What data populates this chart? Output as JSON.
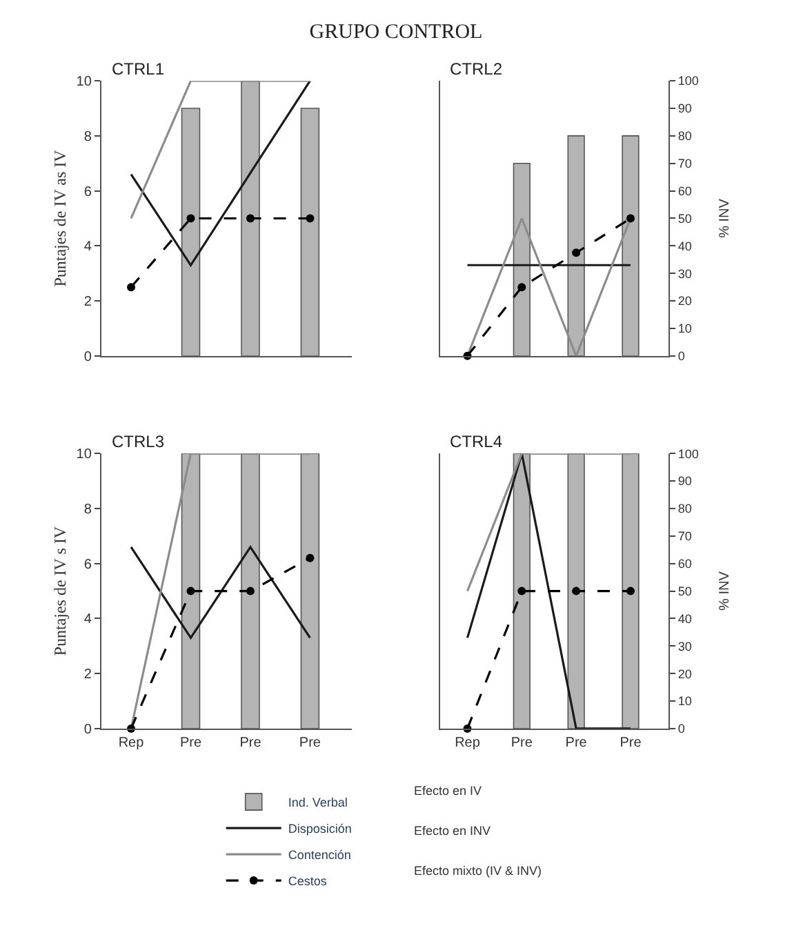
{
  "chart_data": [
    {
      "type": "bar",
      "title": "CTRL1",
      "ylabel": "Puntajes de IV as IV",
      "categories": [
        null,
        null,
        null,
        null
      ],
      "ylim": [
        0,
        10
      ],
      "yticks": [
        0,
        2,
        4,
        6,
        8,
        10
      ],
      "legend": "bottom",
      "series": [
        {
          "name": "Ind. Verbal",
          "type": "bar",
          "color": "#b4b4b4",
          "values": [
            null,
            9,
            10,
            9
          ]
        },
        {
          "name": "Disposición",
          "type": "line",
          "color": "#1a1a1a",
          "line_style": "solid",
          "values": [
            6.6,
            3.3,
            6.65,
            10
          ]
        },
        {
          "name": "Contención",
          "type": "line",
          "color": "#8c8c8c",
          "line_style": "solid",
          "values": [
            5,
            10,
            10,
            10
          ]
        },
        {
          "name": "Cestos",
          "type": "line",
          "color": "#000000",
          "line_style": "dashed",
          "marker": "circle",
          "values": [
            2.5,
            5,
            5,
            5
          ]
        }
      ]
    },
    {
      "type": "bar",
      "title": "CTRL2",
      "y2label": "% INV",
      "categories": [
        null,
        null,
        null,
        null
      ],
      "y2lim": [
        0,
        100
      ],
      "y2ticks": [
        0,
        10,
        20,
        30,
        40,
        50,
        60,
        70,
        80,
        90,
        100
      ],
      "legend": "bottom",
      "series": [
        {
          "name": "Ind. Verbal",
          "type": "bar",
          "axis": "y2",
          "color": "#b4b4b4",
          "values": [
            null,
            70,
            80,
            80
          ]
        },
        {
          "name": "Disposición",
          "type": "line",
          "axis": "y2",
          "color": "#1a1a1a",
          "line_style": "solid",
          "values": [
            33,
            33,
            33,
            33
          ]
        },
        {
          "name": "Contención",
          "type": "line",
          "axis": "y2",
          "color": "#8c8c8c",
          "line_style": "solid",
          "values": [
            0,
            50,
            0,
            50
          ]
        },
        {
          "name": "Cestos",
          "type": "line",
          "axis": "y2",
          "color": "#000000",
          "line_style": "dashed",
          "marker": "circle",
          "values": [
            0,
            25,
            37.5,
            50
          ]
        }
      ]
    },
    {
      "type": "bar",
      "title": "CTRL3",
      "ylabel": "Puntajes de IV s IV",
      "categories": [
        "Rep",
        "Pre",
        "Pre",
        "Pre"
      ],
      "ylim": [
        0,
        10
      ],
      "yticks": [
        0,
        2,
        4,
        6,
        8,
        10
      ],
      "legend": "bottom",
      "series": [
        {
          "name": "Ind. Verbal",
          "type": "bar",
          "color": "#b4b4b4",
          "values": [
            null,
            10,
            10,
            10
          ]
        },
        {
          "name": "Disposición",
          "type": "line",
          "color": "#1a1a1a",
          "line_style": "solid",
          "values": [
            6.6,
            3.3,
            6.6,
            3.3
          ]
        },
        {
          "name": "Contención",
          "type": "line",
          "color": "#8c8c8c",
          "line_style": "solid",
          "values": [
            0,
            10,
            10,
            10
          ]
        },
        {
          "name": "Cestos",
          "type": "line",
          "color": "#000000",
          "line_style": "dashed",
          "marker": "circle",
          "values": [
            0,
            5,
            5,
            6.2
          ]
        }
      ]
    },
    {
      "type": "bar",
      "title": "CTRL4",
      "y2label": "% INV",
      "categories": [
        "Rep",
        "Pre",
        "Pre",
        "Pre"
      ],
      "y2lim": [
        0,
        100
      ],
      "y2ticks": [
        0,
        10,
        20,
        30,
        40,
        50,
        60,
        70,
        80,
        90,
        100
      ],
      "legend": "bottom",
      "series": [
        {
          "name": "Ind. Verbal",
          "type": "bar",
          "axis": "y2",
          "color": "#b4b4b4",
          "values": [
            null,
            100,
            100,
            100
          ]
        },
        {
          "name": "Disposición",
          "type": "line",
          "axis": "y2",
          "color": "#1a1a1a",
          "line_style": "solid",
          "values": [
            33,
            100,
            0,
            0
          ]
        },
        {
          "name": "Contención",
          "type": "line",
          "axis": "y2",
          "color": "#8c8c8c",
          "line_style": "solid",
          "values": [
            50,
            100,
            100,
            100
          ]
        },
        {
          "name": "Cestos",
          "type": "line",
          "axis": "y2",
          "color": "#000000",
          "line_style": "dashed",
          "marker": "circle",
          "values": [
            0,
            50,
            50,
            50
          ]
        }
      ]
    },
    {
      "type": "other",
      "title": "GRUPO CONTROL",
      "annotations": [
        "Efecto en IV",
        "Efecto en INV",
        "Efecto mixto (IV & INV)"
      ]
    }
  ]
}
